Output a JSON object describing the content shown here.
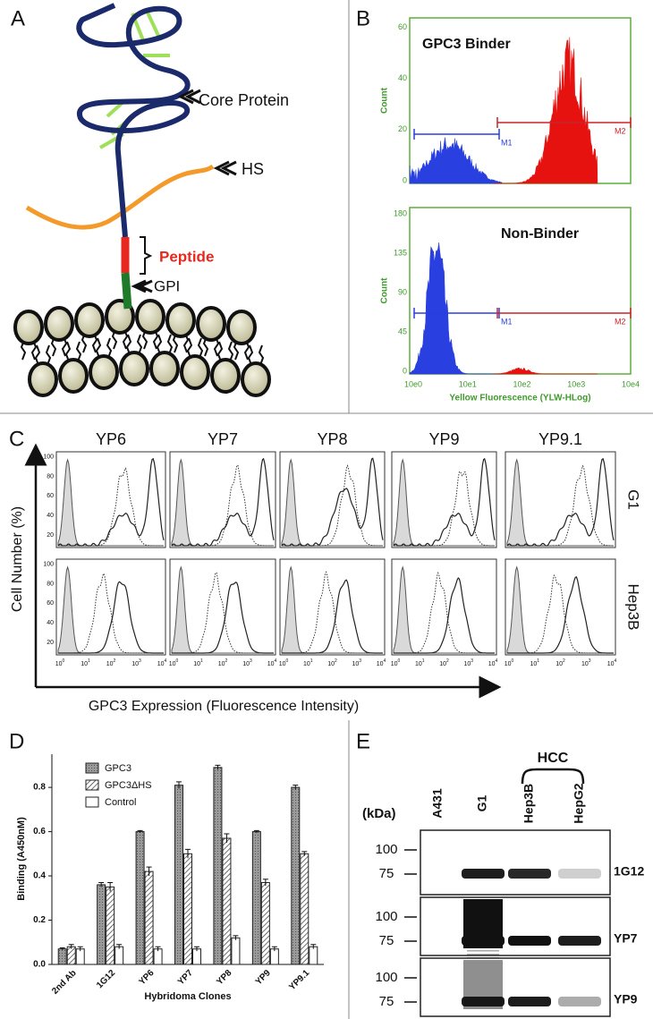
{
  "panels": {
    "a": {
      "label": "A",
      "core_protein": "Core Protein",
      "hs": "HS",
      "peptide": "Peptide",
      "gpi": "GPI"
    },
    "b": {
      "label": "B",
      "plots": [
        {
          "title": "GPC3 Binder",
          "y_label": "Count",
          "yticks": [
            "0",
            "20",
            "40",
            "60"
          ],
          "markers": [
            "M1",
            "M2"
          ]
        },
        {
          "title": "Non-Binder",
          "y_label": "Count",
          "yticks": [
            "0",
            "45",
            "90",
            "135",
            "180"
          ],
          "markers": [
            "M1",
            "M2"
          ]
        }
      ],
      "xticks": [
        "10e0",
        "10e1",
        "10e2",
        "10e3",
        "10e4"
      ],
      "x_label": "Yellow Fluorescence (YLW-HLog)"
    },
    "c": {
      "label": "C",
      "columns": [
        "YP6",
        "YP7",
        "YP8",
        "YP9",
        "YP9.1"
      ],
      "rows": [
        "G1",
        "Hep3B"
      ],
      "y_label": "Cell Number (%)",
      "x_label": "GPC3 Expression (Fluorescence Intensity)",
      "yticks": [
        "20",
        "40",
        "60",
        "80",
        "100"
      ],
      "xtick_base": "10",
      "xtick_exponents": [
        "0",
        "1",
        "2",
        "3",
        "4"
      ]
    },
    "d": {
      "label": "D"
    },
    "e": {
      "label": "E",
      "group": "HCC",
      "unit": "(kDa)",
      "lanes": [
        "A431",
        "G1",
        "Hep3B",
        "HepG2"
      ],
      "blots": [
        {
          "antibody": "1G12",
          "markers": [
            "100",
            "75"
          ]
        },
        {
          "antibody": "YP7",
          "markers": [
            "100",
            "75"
          ]
        },
        {
          "antibody": "YP9",
          "markers": [
            "100",
            "75"
          ]
        }
      ]
    }
  },
  "chart_data": {
    "type": "bar",
    "y_label": "Binding (A450nM)",
    "x_label": "Hybridoma Clones",
    "categories": [
      "2nd Ab",
      "1G12",
      "YP6",
      "YP7",
      "YP8",
      "YP9",
      "YP9.1"
    ],
    "series": [
      {
        "name": "GPC3",
        "color": "#8a8a8a",
        "hatch": false,
        "values": [
          0.07,
          0.36,
          0.6,
          0.81,
          0.89,
          0.6,
          0.8
        ],
        "errors": [
          0.005,
          0.01,
          0.005,
          0.015,
          0.01,
          0.005,
          0.01
        ]
      },
      {
        "name": "GPC3ΔHS",
        "color": "#ffffff",
        "hatch": true,
        "values": [
          0.08,
          0.35,
          0.42,
          0.5,
          0.57,
          0.37,
          0.5
        ],
        "errors": [
          0.01,
          0.02,
          0.02,
          0.02,
          0.02,
          0.015,
          0.01
        ]
      },
      {
        "name": "Control",
        "color": "#ffffff",
        "hatch": false,
        "values": [
          0.07,
          0.08,
          0.07,
          0.07,
          0.12,
          0.07,
          0.08
        ],
        "errors": [
          0.01,
          0.01,
          0.01,
          0.01,
          0.01,
          0.01,
          0.01
        ]
      }
    ],
    "ylim": [
      0,
      0.95
    ],
    "yticks": [
      {
        "value": 0,
        "label": "0.0"
      },
      0.2,
      0.4,
      0.6,
      0.8
    ]
  }
}
